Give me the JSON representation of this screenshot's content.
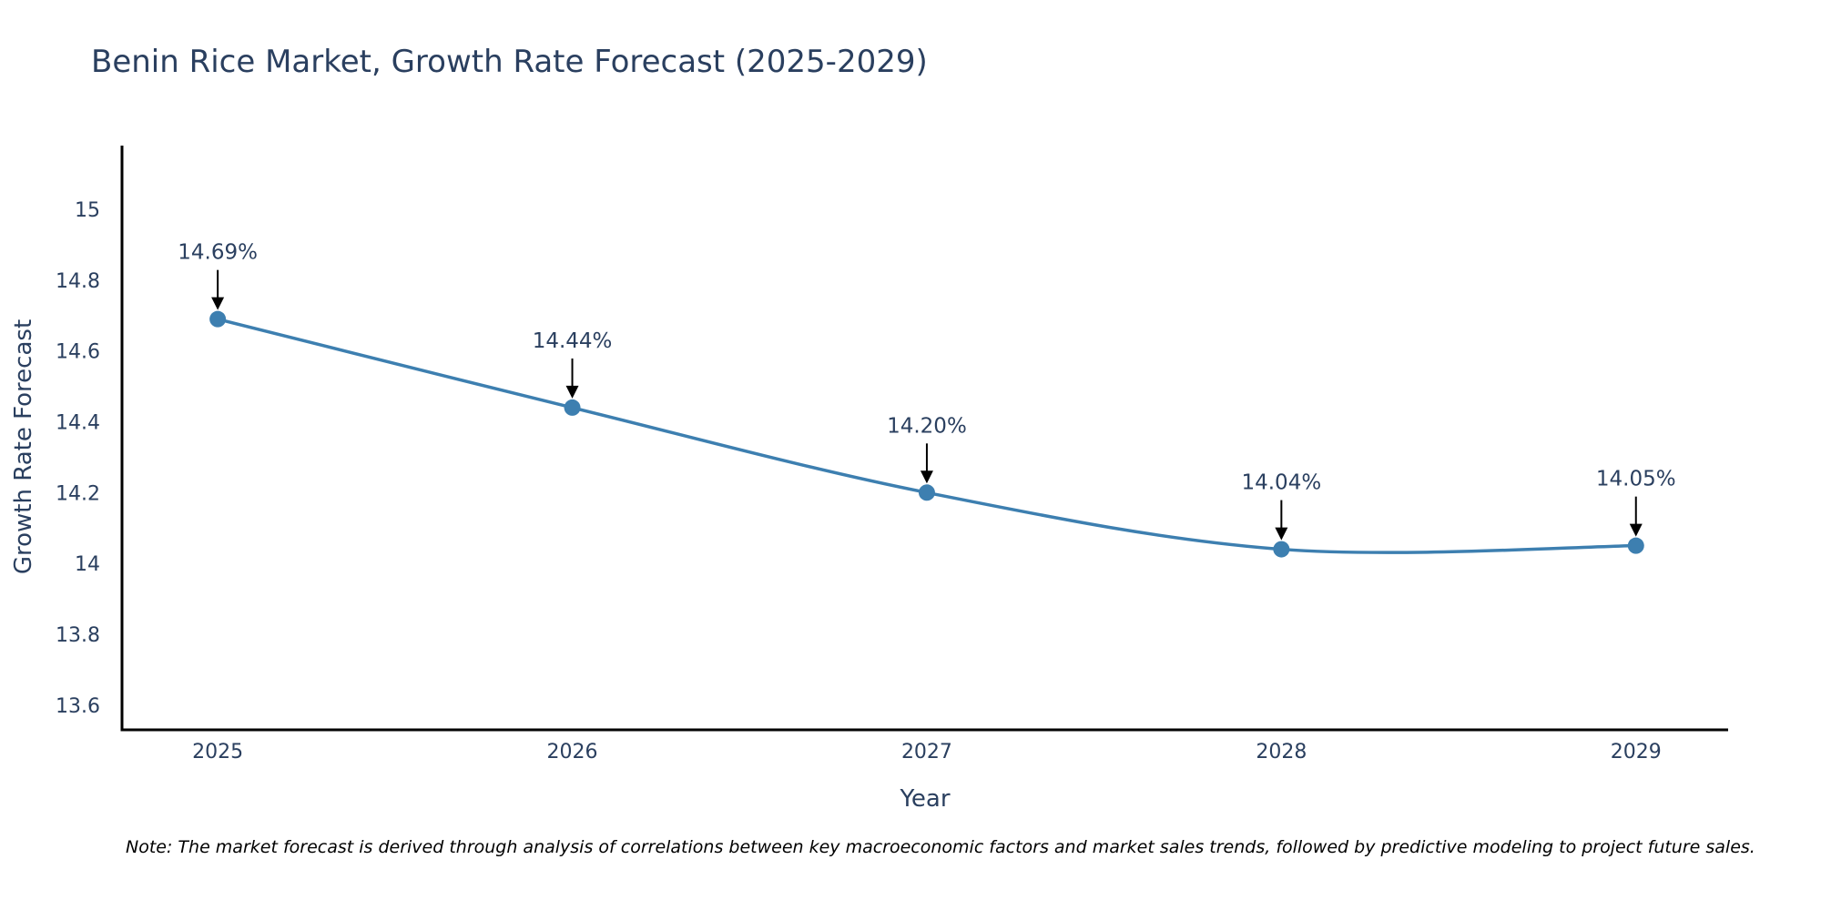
{
  "chart_data": {
    "type": "line",
    "title": "Benin Rice Market, Growth Rate Forecast (2025-2029)",
    "xlabel": "Year",
    "ylabel": "Growth Rate Forecast",
    "categories": [
      "2025",
      "2026",
      "2027",
      "2028",
      "2029"
    ],
    "x": [
      2025,
      2026,
      2027,
      2028,
      2029
    ],
    "values": [
      14.69,
      14.44,
      14.2,
      14.04,
      14.05
    ],
    "data_labels": [
      "14.69%",
      "14.44%",
      "14.20%",
      "14.04%",
      "14.05%"
    ],
    "ylim": [
      13.53,
      15.18
    ],
    "xlim": [
      2024.73,
      2029.26
    ],
    "yticks": [
      13.6,
      13.8,
      14,
      14.2,
      14.4,
      14.6,
      14.8,
      15
    ],
    "ytick_labels": [
      "13.6",
      "13.8",
      "14",
      "14.2",
      "14.4",
      "14.6",
      "14.8",
      "15"
    ],
    "grid": false,
    "line_shape": "spline",
    "series_color": "#3d7fb0",
    "axis_color": "#000000",
    "text_color": "#2a3f5f"
  },
  "note": "Note: The market forecast is derived through analysis of correlations between key macroeconomic factors and market sales trends, followed by predictive modeling to project future sales."
}
